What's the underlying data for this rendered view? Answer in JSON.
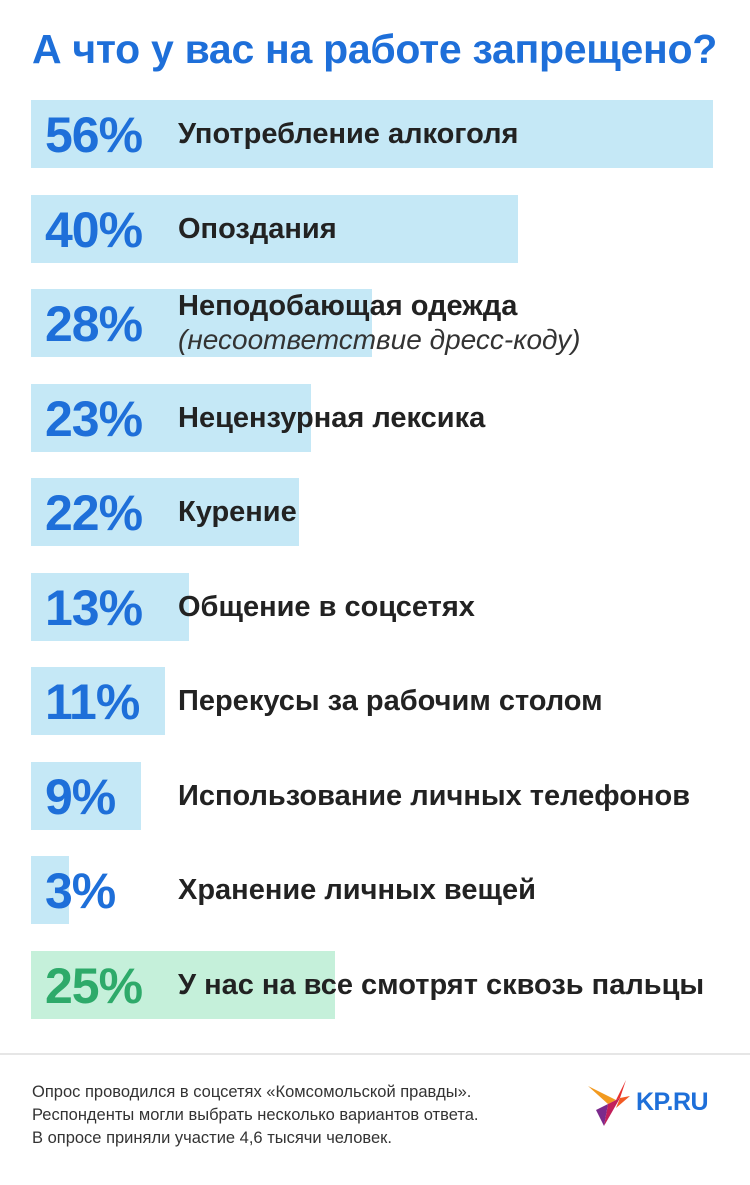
{
  "title": "А что у вас на работе запрещено?",
  "chart_data": {
    "type": "bar",
    "title": "А что у вас на работе запрещено?",
    "unit": "%",
    "categories": [
      "Употребление алкоголя",
      "Опоздания",
      "Неподобающая одежда",
      "Нецензурная лексика",
      "Курение",
      "Общение в соцсетях",
      "Перекусы за рабочим столом",
      "Использование личных телефонов",
      "Хранение личных вещей",
      "У нас на все смотрят сквозь пальцы"
    ],
    "values": [
      56,
      40,
      28,
      23,
      22,
      13,
      11,
      9,
      3,
      25
    ],
    "value_labels": [
      "56%",
      "40%",
      "28%",
      "23%",
      "22%",
      "13%",
      "11%",
      "9%",
      "3%",
      "25%"
    ],
    "notes": [
      "",
      "",
      "(несоответствие дресс-коду)",
      "",
      "",
      "",
      "",
      "",
      "",
      ""
    ],
    "colors": {
      "bar": "#c5e8f6",
      "bar_highlight": "#c5f0da",
      "value": "#1e6fd9",
      "value_highlight": "#2eaa6a"
    },
    "highlight_index": 9
  },
  "footer": {
    "line1": "Опрос проводился в соцсетях «Комсомольской правды».",
    "line2": "Респонденты могли выбрать несколько вариантов ответа.",
    "line3": "В опросе приняли участие 4,6 тысячи человек."
  },
  "logo": {
    "text": "KP.RU",
    "icon": "kp-bird-logo-icon"
  }
}
